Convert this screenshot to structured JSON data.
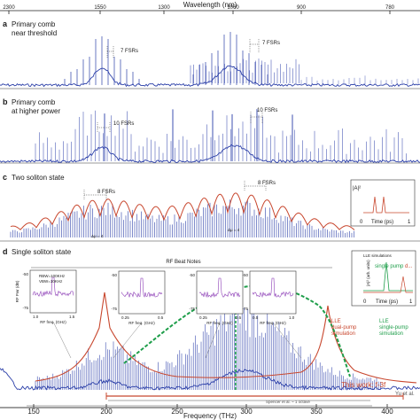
{
  "top_axis": {
    "title": "Wavelength (nm)",
    "ticks": [
      "2300",
      "1550",
      "1300",
      "1060",
      "900",
      "780"
    ]
  },
  "bottom_axis": {
    "title": "Frequency (THz)",
    "ticks": [
      "150",
      "200",
      "250",
      "300",
      "350",
      "400"
    ]
  },
  "panels": {
    "a": {
      "letter": "a",
      "line1": "Primary comb",
      "line2": "near threshold",
      "annotations": [
        "7 FSRs",
        "7 FSRs"
      ]
    },
    "b": {
      "letter": "b",
      "line1": "Primary comb",
      "line2": "at higher power",
      "annotations": [
        "10 FSRs",
        "10 FSRs"
      ]
    },
    "c": {
      "letter": "c",
      "title": "Two soliton state",
      "annotations": [
        "8 FSRs",
        "8 FSRs"
      ],
      "mu_labels": [
        "Δμ = 4",
        "Δμ = 4"
      ],
      "inset": {
        "ylabel": "|A|²",
        "xlabel": "Time (ps)",
        "x0": "0",
        "x1": "1"
      }
    },
    "d": {
      "letter": "d",
      "title": "Single soliton state",
      "rf_title": "RF Beat Notes",
      "rf_insets": [
        {
          "ylabel": "RF Pwr (dB)",
          "xlabel": "RF freq. (GHz)",
          "ticks": [
            "1.0",
            "1.5"
          ],
          "y_ticks": [
            "-50",
            "-75"
          ],
          "notes": [
            "RBW=100KHz",
            "VBW=10KHz"
          ]
        },
        {
          "xlabel": "RF freq. (GHz)",
          "ticks": [
            "0.25",
            "0.5"
          ],
          "y_ticks": [
            "-50",
            "-75"
          ]
        },
        {
          "xlabel": "RF freq. (GHz)",
          "ticks": [
            "0.25",
            "0.5"
          ],
          "y_ticks": [
            "-50",
            "-75"
          ]
        },
        {
          "xlabel": "RF freq. (GHz)",
          "ticks": [
            "0.5",
            "1.0"
          ],
          "y_ticks": [
            "-50",
            "-75"
          ]
        }
      ],
      "lle_inset": {
        "title": "LLE simulations",
        "ylabel": "|A|² (arb. units)",
        "xlabel": "Time (ps)",
        "x0": "0",
        "x1": "1",
        "single_pump": "single pump",
        "dual_pump": "d..."
      },
      "legend": {
        "dual": [
          "LLE",
          "dual-pump",
          "simulation"
        ],
        "single": [
          "LLE",
          "single-pump",
          "simulation"
        ]
      },
      "this_work": "This work: f-3f",
      "references": [
        "Spencer et al. ~ 1 octave",
        "Yu et al."
      ]
    }
  },
  "colors": {
    "spectrum": "#2a3ea8",
    "lle_dual": "#c8472e",
    "lle_single": "#1e9e4a",
    "rf_trace": "#8b3bb5",
    "this_work": "#c8472e"
  }
}
